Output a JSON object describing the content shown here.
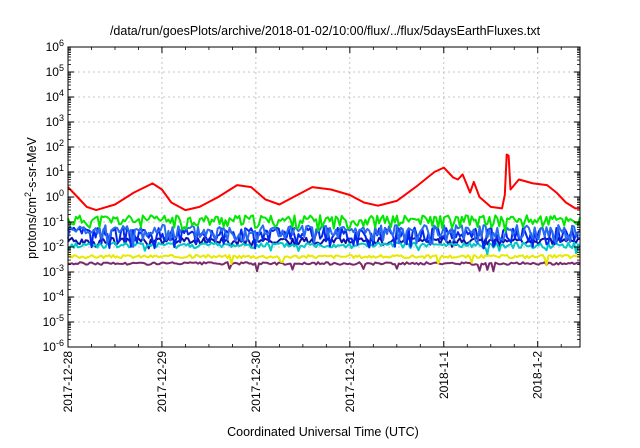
{
  "chart_data": {
    "type": "line",
    "title": "/data/run/goesPlots/archive/2018-01-02/10:00/flux/../flux/5daysEarthFluxes.txt",
    "xlabel": "Coordinated Universal Time (UTC)",
    "ylabel": "protons/cm²-s-sr-MeV",
    "x_ticks": [
      "2017-12-28",
      "2017-12-29",
      "2017-12-30",
      "2017-12-31",
      "2018-1-1",
      "2018-1-2"
    ],
    "xlim_days": [
      0,
      5.45
    ],
    "ylim": [
      1e-06,
      1000000.0
    ],
    "yscale": "log",
    "y_ticks": [
      {
        "base": "10",
        "exp": "6",
        "value": 1000000.0
      },
      {
        "base": "10",
        "exp": "5",
        "value": 100000.0
      },
      {
        "base": "10",
        "exp": "4",
        "value": 10000.0
      },
      {
        "base": "10",
        "exp": "3",
        "value": 1000.0
      },
      {
        "base": "10",
        "exp": "2",
        "value": 100.0
      },
      {
        "base": "10",
        "exp": "1",
        "value": 10.0
      },
      {
        "base": "10",
        "exp": "0",
        "value": 1
      },
      {
        "base": "10",
        "exp": "-1",
        "value": 0.1
      },
      {
        "base": "10",
        "exp": "-2",
        "value": 0.01
      },
      {
        "base": "10",
        "exp": "-3",
        "value": 0.001
      },
      {
        "base": "10",
        "exp": "-4",
        "value": 0.0001
      },
      {
        "base": "10",
        "exp": "-5",
        "value": 1e-05
      },
      {
        "base": "10",
        "exp": "-6",
        "value": 1e-06
      }
    ],
    "grid": true,
    "series": [
      {
        "color": "#ff0000",
        "points": [
          [
            0,
            2.5
          ],
          [
            0.1,
            1.0
          ],
          [
            0.2,
            0.4
          ],
          [
            0.3,
            0.3
          ],
          [
            0.5,
            0.5
          ],
          [
            0.7,
            1.5
          ],
          [
            0.9,
            3.5
          ],
          [
            1.0,
            2.0
          ],
          [
            1.1,
            0.6
          ],
          [
            1.25,
            0.3
          ],
          [
            1.4,
            0.4
          ],
          [
            1.6,
            1.0
          ],
          [
            1.8,
            3.0
          ],
          [
            1.95,
            2.5
          ],
          [
            2.1,
            0.8
          ],
          [
            2.25,
            0.5
          ],
          [
            2.4,
            1.0
          ],
          [
            2.6,
            2.5
          ],
          [
            2.8,
            2.0
          ],
          [
            3.0,
            1.2
          ],
          [
            3.15,
            0.6
          ],
          [
            3.3,
            0.45
          ],
          [
            3.5,
            0.7
          ],
          [
            3.7,
            2.5
          ],
          [
            3.9,
            10
          ],
          [
            4.0,
            15
          ],
          [
            4.1,
            6
          ],
          [
            4.15,
            5
          ],
          [
            4.2,
            8
          ],
          [
            4.28,
            1.5
          ],
          [
            4.32,
            4
          ],
          [
            4.38,
            1.0
          ],
          [
            4.5,
            0.4
          ],
          [
            4.62,
            0.35
          ],
          [
            4.65,
            1.2
          ],
          [
            4.67,
            50
          ],
          [
            4.69,
            45
          ],
          [
            4.71,
            2.0
          ],
          [
            4.8,
            5
          ],
          [
            4.95,
            3.5
          ],
          [
            5.1,
            3
          ],
          [
            5.2,
            1.5
          ],
          [
            5.3,
            0.6
          ],
          [
            5.4,
            0.35
          ],
          [
            5.45,
            0.35
          ]
        ]
      },
      {
        "color": "#00e800",
        "level": 0.12,
        "spread": 0.55,
        "seed": 11
      },
      {
        "color": "#2a6af0",
        "level": 0.045,
        "spread": 0.7,
        "seed": 23
      },
      {
        "color": "#0028f0",
        "level": 0.035,
        "spread": 0.75,
        "seed": 37
      },
      {
        "color": "#00c8c8",
        "level": 0.012,
        "spread": 0.25,
        "seed": 41
      },
      {
        "color": "#1010a8",
        "level": 0.018,
        "spread": 0.3,
        "seed": 53
      },
      {
        "color": "#e8e800",
        "level": 0.0042,
        "spread": 0.15,
        "seed": 67
      },
      {
        "color": "#7a2a6a",
        "level": 0.0022,
        "spread": 0.12,
        "seed": 79
      }
    ]
  }
}
